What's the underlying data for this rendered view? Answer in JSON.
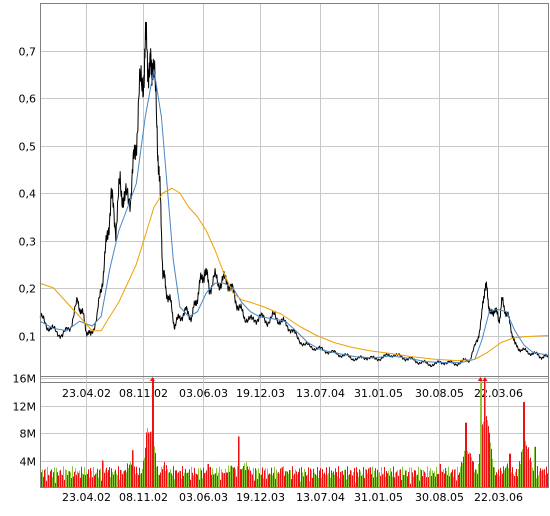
{
  "colors": {
    "price": "#000000",
    "ma_short": "#4a86c8",
    "ma_long": "#f0a000",
    "grid": "#c8c8c8",
    "frame": "#808080",
    "volume_up": "#8cc63f",
    "volume_down": "#ee1111",
    "volume_marker": "#ee1111"
  },
  "chart_data": [
    {
      "type": "line",
      "name": "price-panel",
      "x_tick_labels": [
        "23.04.02",
        "08.11.02",
        "03.06.03",
        "19.12.03",
        "13.07.04",
        "31.01.05",
        "30.08.05",
        "22.03.06"
      ],
      "y_tick_labels": [
        "0,1",
        "0,2",
        "0,3",
        "0,4",
        "0,5",
        "0,6",
        "0,7"
      ],
      "y_ticks": [
        0.1,
        0.2,
        0.3,
        0.4,
        0.5,
        0.6,
        0.7
      ],
      "ylim": [
        0.0,
        0.8
      ],
      "x_range": [
        "2001-11-15",
        "2006-09-15"
      ],
      "grid": true,
      "legend": "none",
      "series": [
        {
          "role": "price",
          "points": [
            [
              "2001-11-15",
              0.14
            ],
            [
              "2001-12-10",
              0.12
            ],
            [
              "2002-01-05",
              0.11
            ],
            [
              "2002-02-01",
              0.1
            ],
            [
              "2002-03-01",
              0.12
            ],
            [
              "2002-03-25",
              0.17
            ],
            [
              "2002-04-10",
              0.15
            ],
            [
              "2002-04-25",
              0.11
            ],
            [
              "2002-05-10",
              0.1
            ],
            [
              "2002-06-01",
              0.14
            ],
            [
              "2002-06-20",
              0.22
            ],
            [
              "2002-07-05",
              0.3
            ],
            [
              "2002-07-20",
              0.39
            ],
            [
              "2002-08-05",
              0.33
            ],
            [
              "2002-08-20",
              0.42
            ],
            [
              "2002-09-05",
              0.38
            ],
            [
              "2002-09-25",
              0.4
            ],
            [
              "2002-10-10",
              0.48
            ],
            [
              "2002-10-25",
              0.6
            ],
            [
              "2002-11-10",
              0.66
            ],
            [
              "2002-11-20",
              0.72
            ],
            [
              "2002-12-01",
              0.64
            ],
            [
              "2002-12-10",
              0.7
            ],
            [
              "2002-12-25",
              0.55
            ],
            [
              "2003-01-05",
              0.4
            ],
            [
              "2003-01-15",
              0.24
            ],
            [
              "2003-01-25",
              0.2
            ],
            [
              "2003-02-10",
              0.17
            ],
            [
              "2003-02-25",
              0.12
            ],
            [
              "2003-03-15",
              0.14
            ],
            [
              "2003-04-05",
              0.15
            ],
            [
              "2003-04-25",
              0.14
            ],
            [
              "2003-05-10",
              0.17
            ],
            [
              "2003-05-25",
              0.21
            ],
            [
              "2003-06-10",
              0.24
            ],
            [
              "2003-06-25",
              0.2
            ],
            [
              "2003-07-15",
              0.22
            ],
            [
              "2003-08-05",
              0.21
            ],
            [
              "2003-08-25",
              0.22
            ],
            [
              "2003-09-15",
              0.19
            ],
            [
              "2003-10-05",
              0.16
            ],
            [
              "2003-10-25",
              0.14
            ],
            [
              "2003-11-20",
              0.13
            ],
            [
              "2003-12-15",
              0.14
            ],
            [
              "2004-01-10",
              0.13
            ],
            [
              "2004-02-05",
              0.14
            ],
            [
              "2004-03-01",
              0.13
            ],
            [
              "2004-03-25",
              0.12
            ],
            [
              "2004-04-20",
              0.1
            ],
            [
              "2004-05-20",
              0.08
            ],
            [
              "2004-06-20",
              0.075
            ],
            [
              "2004-07-20",
              0.07
            ],
            [
              "2004-08-20",
              0.065
            ],
            [
              "2004-09-20",
              0.06
            ],
            [
              "2004-10-20",
              0.055
            ],
            [
              "2004-11-20",
              0.05
            ],
            [
              "2004-12-20",
              0.055
            ],
            [
              "2005-01-20",
              0.05
            ],
            [
              "2005-02-20",
              0.055
            ],
            [
              "2005-03-20",
              0.06
            ],
            [
              "2005-04-20",
              0.055
            ],
            [
              "2005-05-20",
              0.05
            ],
            [
              "2005-06-20",
              0.045
            ],
            [
              "2005-07-20",
              0.04
            ],
            [
              "2005-08-20",
              0.04
            ],
            [
              "2005-09-20",
              0.045
            ],
            [
              "2005-10-20",
              0.04
            ],
            [
              "2005-11-20",
              0.045
            ],
            [
              "2005-12-15",
              0.05
            ],
            [
              "2006-01-10",
              0.09
            ],
            [
              "2006-01-25",
              0.14
            ],
            [
              "2006-02-05",
              0.21
            ],
            [
              "2006-02-15",
              0.18
            ],
            [
              "2006-02-25",
              0.14
            ],
            [
              "2006-03-10",
              0.16
            ],
            [
              "2006-03-25",
              0.13
            ],
            [
              "2006-04-05",
              0.17
            ],
            [
              "2006-04-20",
              0.15
            ],
            [
              "2006-05-05",
              0.12
            ],
            [
              "2006-05-20",
              0.08
            ],
            [
              "2006-06-10",
              0.07
            ],
            [
              "2006-07-05",
              0.065
            ],
            [
              "2006-08-01",
              0.06
            ],
            [
              "2006-08-25",
              0.055
            ],
            [
              "2006-09-15",
              0.055
            ]
          ]
        },
        {
          "role": "ma_short",
          "points": [
            [
              "2001-11-15",
              0.13
            ],
            [
              "2002-01-01",
              0.115
            ],
            [
              "2002-02-15",
              0.11
            ],
            [
              "2002-04-01",
              0.13
            ],
            [
              "2002-05-15",
              0.12
            ],
            [
              "2002-06-15",
              0.14
            ],
            [
              "2002-07-15",
              0.24
            ],
            [
              "2002-08-15",
              0.32
            ],
            [
              "2002-09-15",
              0.37
            ],
            [
              "2002-10-15",
              0.42
            ],
            [
              "2002-11-15",
              0.56
            ],
            [
              "2002-12-15",
              0.66
            ],
            [
              "2003-01-10",
              0.56
            ],
            [
              "2003-02-01",
              0.4
            ],
            [
              "2003-02-20",
              0.26
            ],
            [
              "2003-03-15",
              0.16
            ],
            [
              "2003-04-15",
              0.14
            ],
            [
              "2003-05-15",
              0.15
            ],
            [
              "2003-06-15",
              0.19
            ],
            [
              "2003-07-15",
              0.21
            ],
            [
              "2003-08-15",
              0.21
            ],
            [
              "2003-09-15",
              0.2
            ],
            [
              "2003-10-15",
              0.17
            ],
            [
              "2003-11-15",
              0.15
            ],
            [
              "2003-12-15",
              0.14
            ],
            [
              "2004-02-01",
              0.135
            ],
            [
              "2004-03-15",
              0.13
            ],
            [
              "2004-04-20",
              0.11
            ],
            [
              "2004-06-01",
              0.085
            ],
            [
              "2004-07-15",
              0.07
            ],
            [
              "2004-09-15",
              0.062
            ],
            [
              "2004-11-15",
              0.055
            ],
            [
              "2005-01-15",
              0.053
            ],
            [
              "2005-03-15",
              0.057
            ],
            [
              "2005-05-15",
              0.052
            ],
            [
              "2005-07-15",
              0.045
            ],
            [
              "2005-09-15",
              0.043
            ],
            [
              "2005-11-15",
              0.043
            ],
            [
              "2006-01-01",
              0.05
            ],
            [
              "2006-01-25",
              0.09
            ],
            [
              "2006-02-20",
              0.15
            ],
            [
              "2006-03-20",
              0.155
            ],
            [
              "2006-04-20",
              0.15
            ],
            [
              "2006-05-20",
              0.11
            ],
            [
              "2006-06-20",
              0.08
            ],
            [
              "2006-07-20",
              0.065
            ],
            [
              "2006-09-15",
              0.058
            ]
          ]
        },
        {
          "role": "ma_long",
          "points": [
            [
              "2001-11-15",
              0.21
            ],
            [
              "2002-01-01",
              0.2
            ],
            [
              "2002-02-15",
              0.17
            ],
            [
              "2002-04-01",
              0.14
            ],
            [
              "2002-05-15",
              0.11
            ],
            [
              "2002-06-15",
              0.11
            ],
            [
              "2002-07-15",
              0.14
            ],
            [
              "2002-08-15",
              0.17
            ],
            [
              "2002-09-15",
              0.21
            ],
            [
              "2002-10-15",
              0.25
            ],
            [
              "2002-11-15",
              0.31
            ],
            [
              "2002-12-15",
              0.37
            ],
            [
              "2003-01-15",
              0.4
            ],
            [
              "2003-02-15",
              0.41
            ],
            [
              "2003-03-15",
              0.4
            ],
            [
              "2003-04-15",
              0.37
            ],
            [
              "2003-05-15",
              0.35
            ],
            [
              "2003-06-15",
              0.32
            ],
            [
              "2003-07-15",
              0.28
            ],
            [
              "2003-08-15",
              0.23
            ],
            [
              "2003-09-15",
              0.19
            ],
            [
              "2003-10-15",
              0.175
            ],
            [
              "2003-11-15",
              0.17
            ],
            [
              "2004-01-01",
              0.16
            ],
            [
              "2004-03-01",
              0.145
            ],
            [
              "2004-05-01",
              0.12
            ],
            [
              "2004-07-01",
              0.1
            ],
            [
              "2004-09-01",
              0.085
            ],
            [
              "2004-11-01",
              0.075
            ],
            [
              "2005-01-01",
              0.068
            ],
            [
              "2005-03-15",
              0.062
            ],
            [
              "2005-06-01",
              0.055
            ],
            [
              "2005-08-15",
              0.05
            ],
            [
              "2005-11-01",
              0.047
            ],
            [
              "2006-01-01",
              0.05
            ],
            [
              "2006-02-15",
              0.065
            ],
            [
              "2006-04-01",
              0.085
            ],
            [
              "2006-05-15",
              0.095
            ],
            [
              "2006-07-01",
              0.098
            ],
            [
              "2006-09-15",
              0.1
            ]
          ]
        }
      ]
    },
    {
      "type": "bar",
      "name": "volume-panel",
      "x_tick_labels": [
        "23.04.02",
        "08.11.02",
        "03.06.03",
        "19.12.03",
        "13.07.04",
        "31.01.05",
        "30.08.05",
        "22.03.06"
      ],
      "y_tick_labels": [
        "4M",
        "8M",
        "12M",
        "16M"
      ],
      "y_ticks": [
        4000000,
        8000000,
        12000000,
        16000000
      ],
      "ylim": [
        0,
        16000000
      ],
      "x_range": [
        "2001-11-15",
        "2006-09-15"
      ],
      "grid": true,
      "peaks": [
        [
          "2002-06-20",
          4.0
        ],
        [
          "2002-10-01",
          5.5
        ],
        [
          "2002-11-20",
          6.5
        ],
        [
          "2002-12-10",
          16.0
        ],
        [
          "2003-06-20",
          3.5
        ],
        [
          "2003-10-05",
          7.5
        ],
        [
          "2004-03-01",
          3.0
        ],
        [
          "2005-01-01",
          3.0
        ],
        [
          "2005-09-01",
          3.5
        ],
        [
          "2005-12-01",
          9.5
        ],
        [
          "2006-01-20",
          16.0
        ],
        [
          "2006-02-05",
          16.0
        ],
        [
          "2006-02-15",
          9.0
        ],
        [
          "2006-05-01",
          5.0
        ],
        [
          "2006-06-20",
          12.5
        ],
        [
          "2006-07-25",
          6.0
        ]
      ],
      "clipped_markers": [
        "2002-12-10",
        "2006-01-20",
        "2006-02-05"
      ]
    }
  ]
}
